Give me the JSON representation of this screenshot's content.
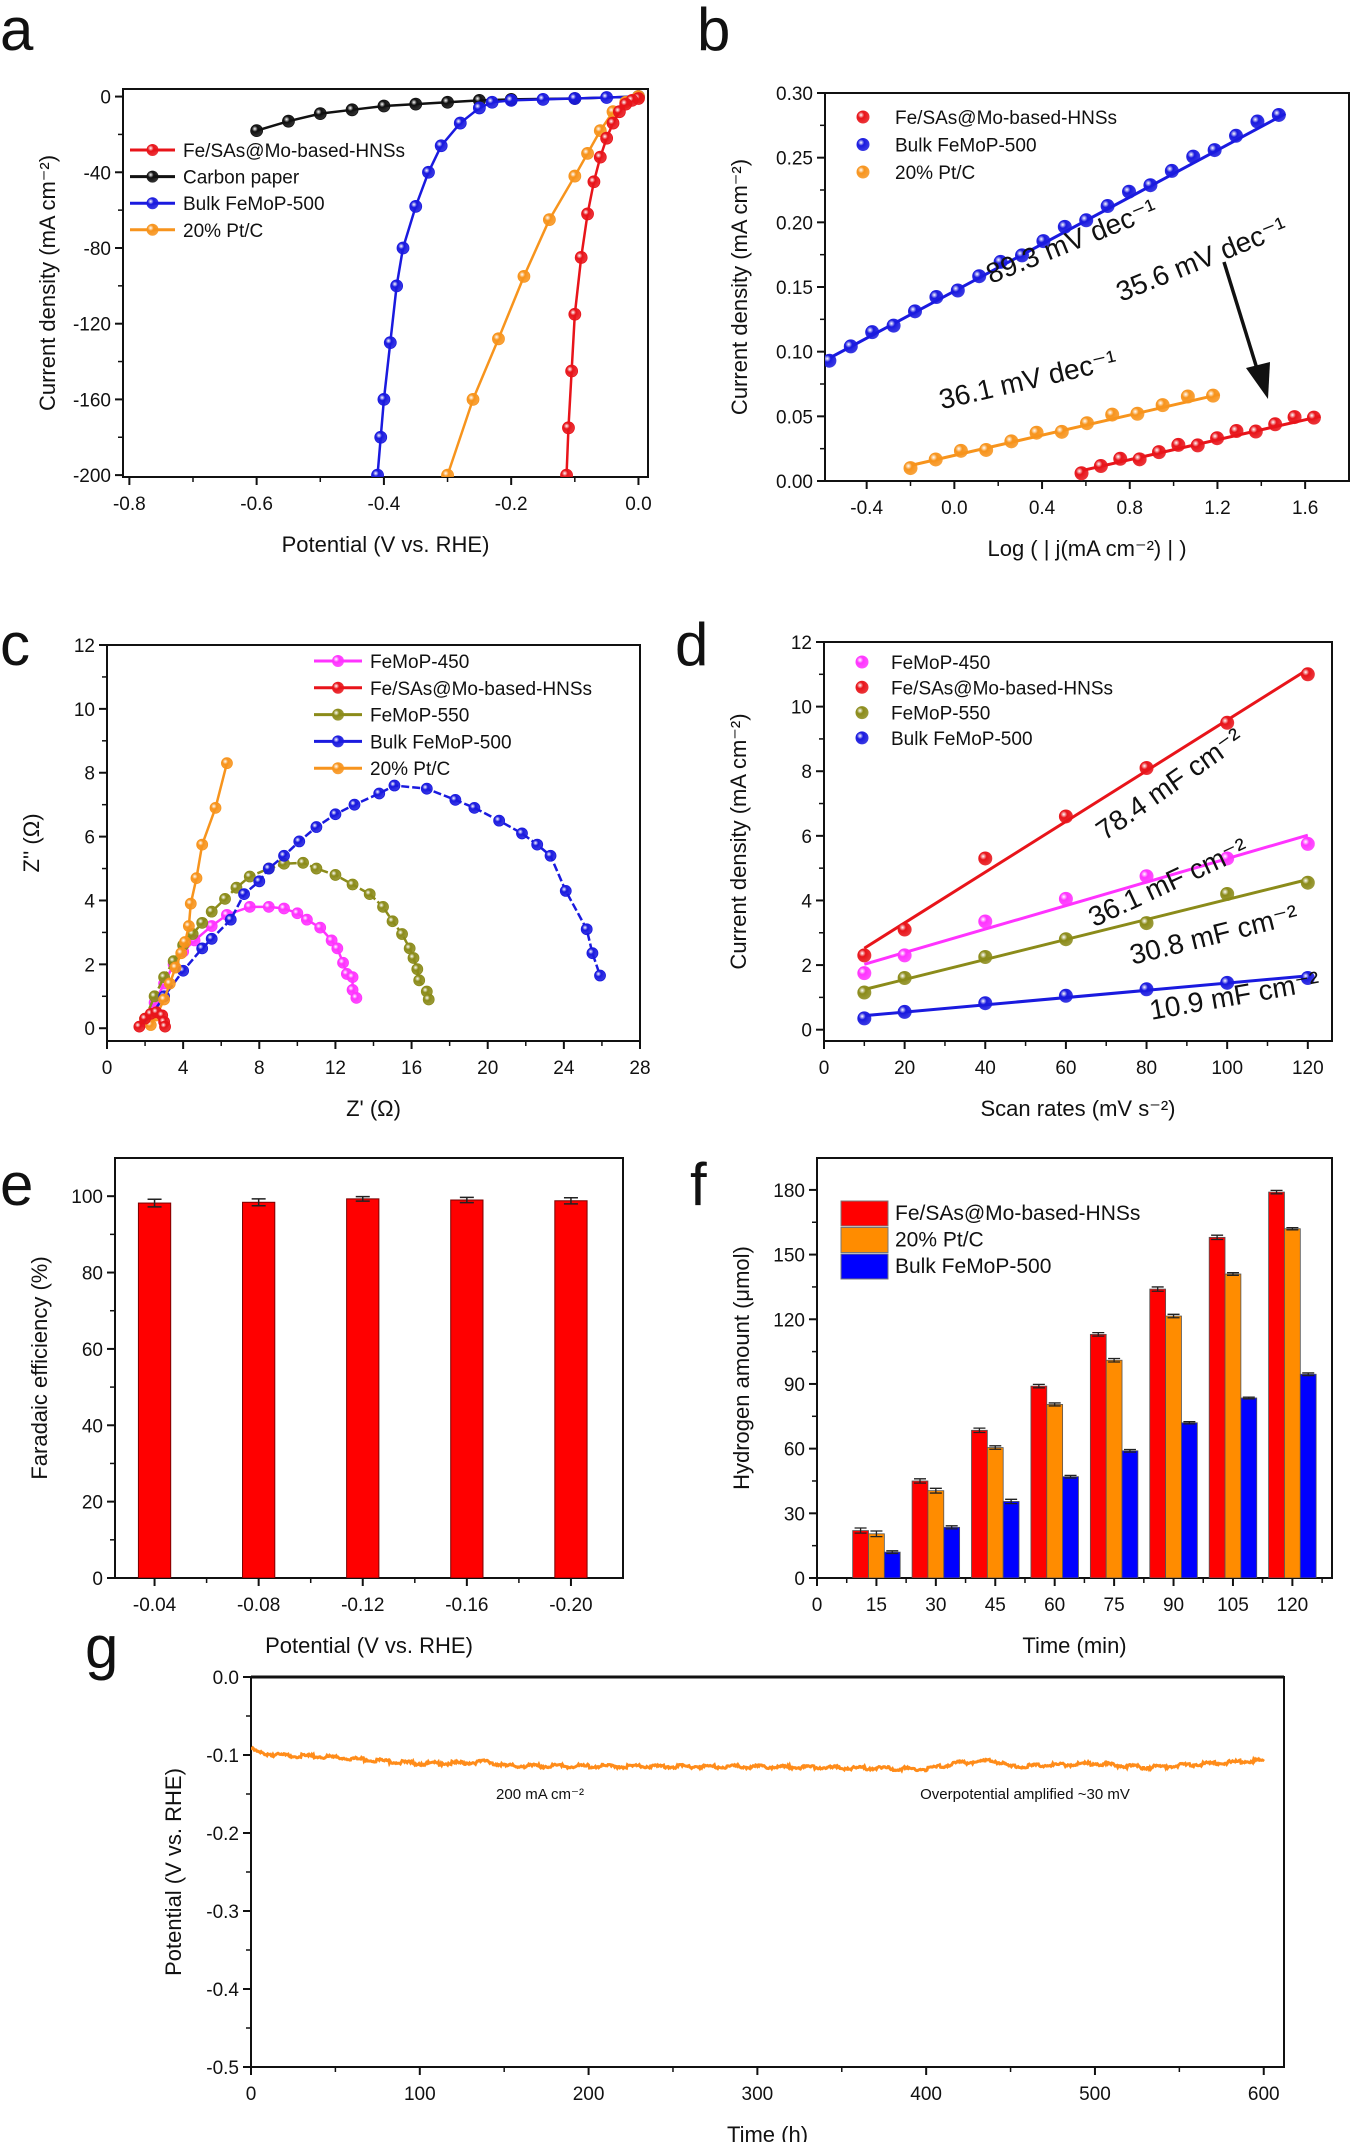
{
  "chart_data": [
    {
      "panel": "a",
      "type": "line",
      "xlabel": "Potential (V vs. RHE)",
      "ylabel": "Current density (mA cm⁻²)",
      "xlim": [
        -0.81,
        0.015
      ],
      "ylim": [
        -201,
        4
      ],
      "xticks": [
        "-0.8",
        "-0.6",
        "-0.4",
        "-0.2",
        "0.0"
      ],
      "yticks": [
        "0",
        "-40",
        "-80",
        "-120",
        "-160",
        "-200"
      ],
      "legend": "top-left",
      "series": [
        {
          "name": "Fe/SAs@Mo-based-HNSs",
          "color": "#e8141a",
          "points": [
            [
              0,
              -1
            ],
            [
              -0.01,
              -2
            ],
            [
              -0.02,
              -4
            ],
            [
              -0.03,
              -8
            ],
            [
              -0.04,
              -14
            ],
            [
              -0.05,
              -22
            ],
            [
              -0.06,
              -32
            ],
            [
              -0.07,
              -45
            ],
            [
              -0.08,
              -62
            ],
            [
              -0.09,
              -85
            ],
            [
              -0.1,
              -115
            ],
            [
              -0.105,
              -145
            ],
            [
              -0.11,
              -175
            ],
            [
              -0.113,
              -200
            ]
          ]
        },
        {
          "name": "Carbon paper",
          "color": "#111111",
          "points": [
            [
              -0.6,
              -18
            ],
            [
              -0.55,
              -13
            ],
            [
              -0.5,
              -9
            ],
            [
              -0.45,
              -7
            ],
            [
              -0.4,
              -5
            ],
            [
              -0.35,
              -4
            ],
            [
              -0.3,
              -3
            ],
            [
              -0.25,
              -2
            ],
            [
              -0.2,
              -1.5
            ],
            [
              -0.1,
              -1
            ],
            [
              0,
              0
            ]
          ]
        },
        {
          "name": "Bulk FeMoP-500",
          "color": "#1a1adf",
          "points": [
            [
              0,
              0
            ],
            [
              -0.05,
              -0.5
            ],
            [
              -0.1,
              -1
            ],
            [
              -0.15,
              -1.5
            ],
            [
              -0.2,
              -2
            ],
            [
              -0.23,
              -3
            ],
            [
              -0.25,
              -6
            ],
            [
              -0.28,
              -14
            ],
            [
              -0.31,
              -26
            ],
            [
              -0.33,
              -40
            ],
            [
              -0.35,
              -58
            ],
            [
              -0.37,
              -80
            ],
            [
              -0.38,
              -100
            ],
            [
              -0.39,
              -130
            ],
            [
              -0.4,
              -160
            ],
            [
              -0.405,
              -180
            ],
            [
              -0.41,
              -200
            ]
          ]
        },
        {
          "name": "20% Pt/C",
          "color": "#f7941d",
          "points": [
            [
              0,
              0
            ],
            [
              -0.02,
              -3
            ],
            [
              -0.04,
              -8
            ],
            [
              -0.06,
              -18
            ],
            [
              -0.08,
              -30
            ],
            [
              -0.1,
              -42
            ],
            [
              -0.14,
              -65
            ],
            [
              -0.18,
              -95
            ],
            [
              -0.22,
              -128
            ],
            [
              -0.26,
              -160
            ],
            [
              -0.3,
              -200
            ]
          ]
        }
      ]
    },
    {
      "panel": "b",
      "type": "scatter",
      "xlabel": "Log ( | j(mA cm⁻²) | )",
      "ylabel": "Current density (mA cm⁻²)",
      "xlim": [
        -0.59,
        1.8
      ],
      "ylim": [
        0,
        0.3
      ],
      "xticks": [
        "-0.4",
        "0.0",
        "0.4",
        "0.8",
        "1.2",
        "1.6"
      ],
      "yticks": [
        "0.00",
        "0.05",
        "0.10",
        "0.15",
        "0.20",
        "0.25",
        "0.30"
      ],
      "legend": "top-left",
      "series": [
        {
          "name": "Fe/SAs@Mo-based-HNSs",
          "color": "#e8141a",
          "x_range": [
            0.58,
            1.64
          ],
          "y_range": [
            0.008,
            0.051
          ],
          "n": 13
        },
        {
          "name": "Bulk FeMoP-500",
          "color": "#1a1adf",
          "x_range": [
            -0.57,
            1.48
          ],
          "y_range": [
            0.095,
            0.285
          ],
          "n": 22
        },
        {
          "name": "20% Pt/C",
          "color": "#f7941d",
          "x_range": [
            -0.2,
            1.18
          ],
          "y_range": [
            0.012,
            0.068
          ],
          "n": 13
        }
      ],
      "annotations": [
        "89.3 mV dec⁻¹",
        "35.6 mV dec⁻¹",
        "36.1 mV dec⁻¹"
      ]
    },
    {
      "panel": "c",
      "type": "line",
      "xlabel": "Z' (Ω)",
      "ylabel": "Z'' (Ω)",
      "xlim": [
        0,
        28
      ],
      "ylim": [
        -0.4,
        12
      ],
      "xticks": [
        "0",
        "4",
        "8",
        "12",
        "16",
        "20",
        "24",
        "28"
      ],
      "yticks": [
        "0",
        "2",
        "4",
        "6",
        "8",
        "10",
        "12"
      ],
      "legend": "top-right",
      "series": [
        {
          "name": "FeMoP-450",
          "color": "#ff33ff",
          "points": [
            [
              2,
              0.2
            ],
            [
              2.5,
              0.8
            ],
            [
              3,
              1.4
            ],
            [
              3.5,
              2
            ],
            [
              4,
              2.4
            ],
            [
              4.6,
              2.75
            ],
            [
              5.5,
              3.2
            ],
            [
              6.3,
              3.55
            ],
            [
              7.5,
              3.8
            ],
            [
              8.5,
              3.8
            ],
            [
              9.3,
              3.75
            ],
            [
              10,
              3.6
            ],
            [
              10.5,
              3.4
            ],
            [
              11.2,
              3.15
            ],
            [
              11.8,
              2.75
            ],
            [
              12.1,
              2.5
            ],
            [
              12.4,
              2.05
            ],
            [
              12.6,
              1.7
            ],
            [
              12.9,
              1.6
            ],
            [
              12.9,
              1.2
            ],
            [
              13.1,
              0.95
            ]
          ]
        },
        {
          "name": "Fe/SAs@Mo-based-HNSs",
          "color": "#e8141a",
          "points": [
            [
              1.7,
              0.05
            ],
            [
              2,
              0.3
            ],
            [
              2.3,
              0.45
            ],
            [
              2.6,
              0.5
            ],
            [
              2.9,
              0.4
            ],
            [
              3,
              0.2
            ],
            [
              3.05,
              0.05
            ]
          ]
        },
        {
          "name": "FeMoP-550",
          "color": "#8b8b1a",
          "points": [
            [
              2,
              0.3
            ],
            [
              2.5,
              1
            ],
            [
              3,
              1.6
            ],
            [
              3.5,
              2.1
            ],
            [
              4,
              2.6
            ],
            [
              4.5,
              2.95
            ],
            [
              5,
              3.3
            ],
            [
              5.5,
              3.65
            ],
            [
              6.2,
              4.05
            ],
            [
              6.8,
              4.4
            ],
            [
              7.5,
              4.75
            ],
            [
              8.5,
              5
            ],
            [
              9.3,
              5.15
            ],
            [
              10.3,
              5.18
            ],
            [
              11,
              5
            ],
            [
              12,
              4.8
            ],
            [
              12.9,
              4.5
            ],
            [
              13.8,
              4.2
            ],
            [
              14.5,
              3.8
            ],
            [
              15,
              3.35
            ],
            [
              15.5,
              2.95
            ],
            [
              15.9,
              2.5
            ],
            [
              16.1,
              2.2
            ],
            [
              16.3,
              1.85
            ],
            [
              16.4,
              1.5
            ],
            [
              16.8,
              1.15
            ],
            [
              16.9,
              0.9
            ]
          ]
        },
        {
          "name": "Bulk FeMoP-500",
          "color": "#1a1adf",
          "points": [
            [
              2.2,
              0.3
            ],
            [
              3,
              1
            ],
            [
              4,
              1.8
            ],
            [
              5,
              2.5
            ],
            [
              5.5,
              2.8
            ],
            [
              6.5,
              3.4
            ],
            [
              7.2,
              4.2
            ],
            [
              8,
              4.6
            ],
            [
              8.5,
              5
            ],
            [
              9.3,
              5.4
            ],
            [
              10.1,
              5.85
            ],
            [
              11,
              6.3
            ],
            [
              12,
              6.7
            ],
            [
              13,
              7
            ],
            [
              14.3,
              7.35
            ],
            [
              15.1,
              7.6
            ],
            [
              16.8,
              7.5
            ],
            [
              18.3,
              7.15
            ],
            [
              19.3,
              6.9
            ],
            [
              20.6,
              6.5
            ],
            [
              21.8,
              6.1
            ],
            [
              22.6,
              5.75
            ],
            [
              23.3,
              5.4
            ],
            [
              24.1,
              4.3
            ],
            [
              25.2,
              3.1
            ],
            [
              25.5,
              2.35
            ],
            [
              25.9,
              1.65
            ]
          ]
        },
        {
          "name": "20% Pt/C",
          "color": "#f7941d",
          "points": [
            [
              2.3,
              0.1
            ],
            [
              2.6,
              0.4
            ],
            [
              3,
              0.9
            ],
            [
              3.3,
              1.4
            ],
            [
              3.6,
              1.9
            ],
            [
              3.9,
              2.35
            ],
            [
              4.1,
              2.7
            ],
            [
              4.3,
              3.2
            ],
            [
              4.4,
              3.9
            ],
            [
              4.7,
              4.7
            ],
            [
              5,
              5.75
            ],
            [
              5.7,
              6.9
            ],
            [
              6.3,
              8.3
            ]
          ]
        }
      ]
    },
    {
      "panel": "d",
      "type": "scatter",
      "xlabel": "Scan rates (mV s⁻²)",
      "ylabel": "Current density (mA cm⁻²)",
      "xlim": [
        0,
        126
      ],
      "ylim": [
        -0.35,
        12
      ],
      "xticks": [
        "0",
        "20",
        "40",
        "60",
        "80",
        "100",
        "120"
      ],
      "yticks": [
        "0",
        "2",
        "4",
        "6",
        "8",
        "10",
        "12"
      ],
      "legend": "top-left",
      "x": [
        10,
        20,
        40,
        60,
        80,
        100,
        120
      ],
      "series": [
        {
          "name": "FeMoP-450",
          "color": "#ff33ff",
          "values": [
            1.75,
            2.3,
            3.35,
            4.05,
            4.75,
            5.3,
            5.75
          ]
        },
        {
          "name": "Fe/SAs@Mo-based-HNSs",
          "color": "#e8141a",
          "values": [
            2.3,
            3.1,
            5.3,
            6.6,
            8.1,
            9.5,
            11.0
          ]
        },
        {
          "name": "FeMoP-550",
          "color": "#8b8b1a",
          "values": [
            1.15,
            1.6,
            2.25,
            2.8,
            3.3,
            4.2,
            4.55
          ]
        },
        {
          "name": "Bulk FeMoP-500",
          "color": "#1a1adf",
          "values": [
            0.35,
            0.55,
            0.82,
            1.05,
            1.25,
            1.45,
            1.6
          ]
        }
      ],
      "annotations": [
        "78.4 mF cm⁻²",
        "36.1 mF cm⁻²",
        "30.8 mF cm⁻²",
        "10.9 mF cm⁻²"
      ]
    },
    {
      "panel": "e",
      "type": "bar",
      "xlabel": "Potential (V vs. RHE)",
      "ylabel": "Faradaic efficiency (%)",
      "xlim": [
        -0.38,
        4.5
      ],
      "ylim": [
        0,
        110
      ],
      "categories": [
        "-0.04",
        "-0.08",
        "-0.12",
        "-0.16",
        "-0.20"
      ],
      "yticks": [
        "0",
        "20",
        "40",
        "60",
        "80",
        "100"
      ],
      "series": [
        {
          "color": "#ff0000",
          "values": [
            98.2,
            98.4,
            99.3,
            99.0,
            98.8
          ],
          "errors": [
            1.0,
            0.9,
            0.6,
            0.7,
            0.8
          ]
        }
      ]
    },
    {
      "panel": "f",
      "type": "bar",
      "xlabel": "Time (min)",
      "ylabel": "Hydrogen amount (μmol)",
      "xlim": [
        0,
        130
      ],
      "ylim": [
        0,
        194.8
      ],
      "xticks": [
        "0",
        "15",
        "30",
        "45",
        "60",
        "75",
        "90",
        "105",
        "120"
      ],
      "yticks": [
        "0",
        "30",
        "60",
        "90",
        "120",
        "150",
        "180"
      ],
      "legend": "top-left",
      "x": [
        15,
        30,
        45,
        60,
        75,
        90,
        105,
        120
      ],
      "series": [
        {
          "name": "Fe/SAs@Mo-based-HNSs",
          "color": "#ff0000",
          "values": [
            22,
            45,
            68.5,
            89,
            113,
            134,
            158,
            179
          ],
          "errors": [
            1.2,
            1,
            1,
            0.8,
            0.8,
            1,
            1,
            0.8
          ]
        },
        {
          "name": "20% Pt/C",
          "color": "#ff8c00",
          "values": [
            20.5,
            40.5,
            60.5,
            80.5,
            101,
            121.5,
            141,
            162
          ],
          "errors": [
            1.3,
            1.1,
            0.8,
            0.7,
            0.8,
            0.8,
            0.6,
            0.5
          ]
        },
        {
          "name": "Bulk FeMoP-500",
          "color": "#0000ff",
          "values": [
            12,
            23.5,
            35.5,
            47,
            59,
            72,
            83.5,
            94.5
          ],
          "errors": [
            0.6,
            0.7,
            1,
            0.6,
            0.6,
            0.5,
            0.4,
            0.6
          ]
        }
      ]
    },
    {
      "panel": "g",
      "type": "line",
      "xlabel": "Time (h)",
      "ylabel": "Potential (V vs. RHE)",
      "xlim": [
        0,
        612
      ],
      "ylim": [
        -0.5,
        0
      ],
      "xticks": [
        "0",
        "100",
        "200",
        "300",
        "400",
        "500",
        "600"
      ],
      "yticks": [
        "0.0",
        "-0.1",
        "-0.2",
        "-0.3",
        "-0.4",
        "-0.5"
      ],
      "series": [
        {
          "color": "#ff8c1a",
          "points": [
            [
              0,
              -0.092
            ],
            [
              5,
              -0.097
            ],
            [
              15,
              -0.1
            ],
            [
              50,
              -0.103
            ],
            [
              100,
              -0.111
            ],
            [
              130,
              -0.11
            ],
            [
              140,
              -0.108
            ],
            [
              150,
              -0.114
            ],
            [
              300,
              -0.115
            ],
            [
              400,
              -0.118
            ],
            [
              420,
              -0.11
            ],
            [
              440,
              -0.107
            ],
            [
              450,
              -0.115
            ],
            [
              500,
              -0.111
            ],
            [
              530,
              -0.116
            ],
            [
              600,
              -0.107
            ]
          ]
        }
      ],
      "annotations": [
        "200 mA cm⁻²",
        "Overpotential amplified ~30 mV"
      ]
    }
  ]
}
